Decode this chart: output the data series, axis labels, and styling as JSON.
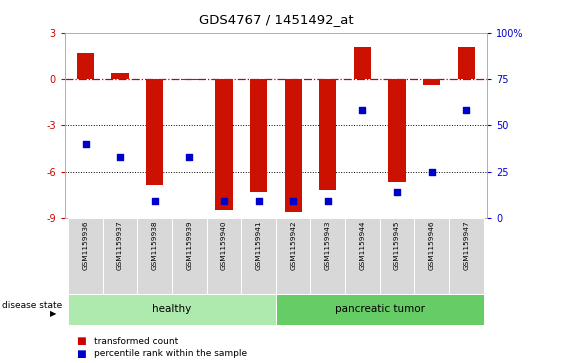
{
  "title": "GDS4767 / 1451492_at",
  "samples": [
    "GSM1159936",
    "GSM1159937",
    "GSM1159938",
    "GSM1159939",
    "GSM1159940",
    "GSM1159941",
    "GSM1159942",
    "GSM1159943",
    "GSM1159944",
    "GSM1159945",
    "GSM1159946",
    "GSM1159947"
  ],
  "transformed_count": [
    1.7,
    0.4,
    -6.9,
    -0.05,
    -8.5,
    -7.3,
    -8.6,
    -7.2,
    2.1,
    -6.7,
    -0.4,
    2.1
  ],
  "percentile_rank": [
    40,
    33,
    9,
    33,
    9,
    9,
    9,
    9,
    58,
    14,
    25,
    58
  ],
  "ylim_left": [
    -9,
    3
  ],
  "ylim_right": [
    0,
    100
  ],
  "yticks_left": [
    -9,
    -6,
    -3,
    0,
    3
  ],
  "yticks_right": [
    0,
    25,
    50,
    75,
    100
  ],
  "groups": [
    {
      "label": "healthy",
      "indices": [
        0,
        1,
        2,
        3,
        4,
        5
      ],
      "color": "#aeeaae"
    },
    {
      "label": "pancreatic tumor",
      "indices": [
        6,
        7,
        8,
        9,
        10,
        11
      ],
      "color": "#66cc66"
    }
  ],
  "bar_color": "#cc1100",
  "dot_color": "#0000cc",
  "hline_color": "#cc0000",
  "dotted_line_color": "#000000",
  "plot_bg_color": "#ffffff",
  "bar_width": 0.5,
  "dot_size": 22,
  "legend_red_label": "transformed count",
  "legend_blue_label": "percentile rank within the sample",
  "disease_state_label": "disease state",
  "figsize": [
    5.63,
    3.63
  ],
  "dpi": 100
}
